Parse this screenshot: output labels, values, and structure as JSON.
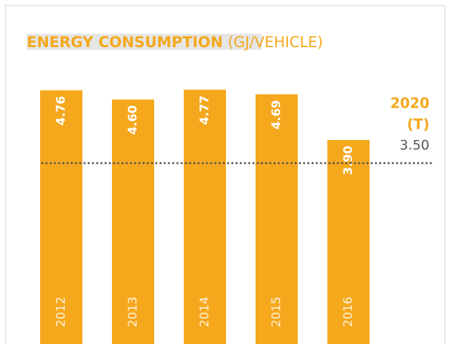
{
  "chart_data": {
    "type": "bar",
    "title": "ENERGY CONSUMPTION",
    "unit": "(GJ/VEHICLE)",
    "categories": [
      "2012",
      "2013",
      "2014",
      "2015",
      "2016"
    ],
    "values": [
      4.76,
      4.6,
      4.77,
      4.69,
      3.9
    ],
    "value_labels": [
      "4.76",
      "4.60",
      "4.77",
      "4.69",
      "3.90"
    ],
    "color": "#f5a81c",
    "ylim": [
      0.7,
      5.3
    ],
    "target": {
      "label_lines": [
        "2020",
        "(T)"
      ],
      "value": 3.5,
      "value_label": "3.50",
      "color": "#555555",
      "label_color": "#f5a81c"
    }
  }
}
